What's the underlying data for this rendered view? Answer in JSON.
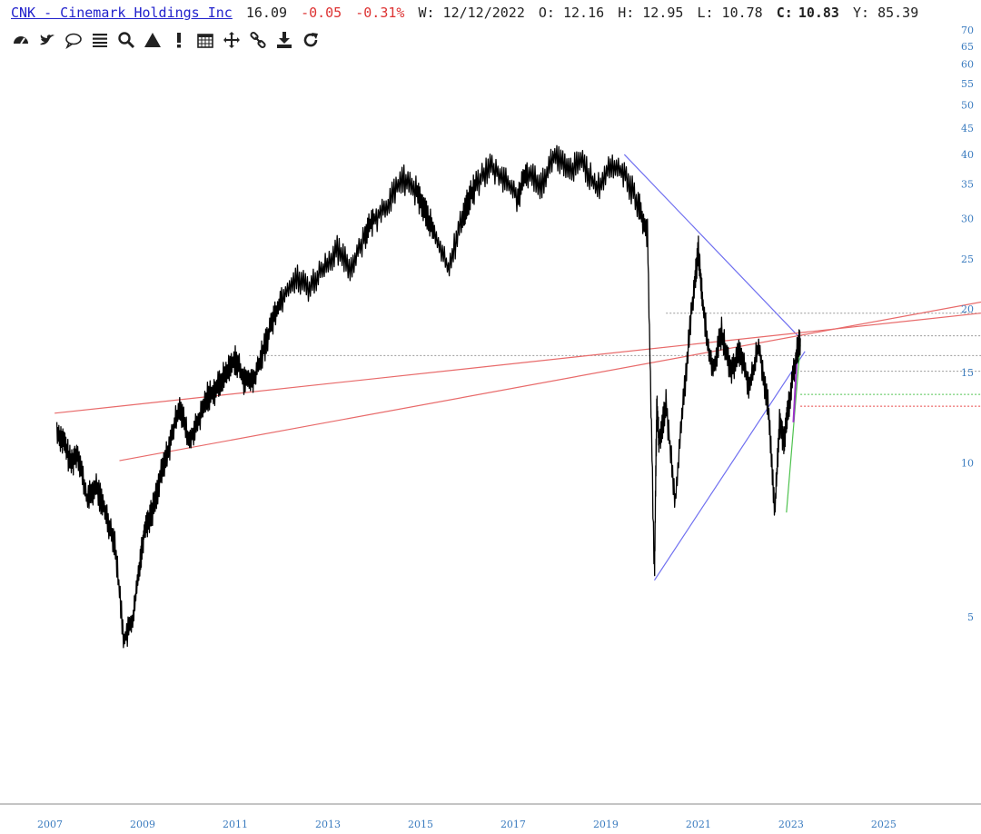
{
  "header": {
    "symbol_name": "CNK - Cinemark Holdings Inc",
    "last": "16.09",
    "change": "-0.05",
    "change_pct": "-0.31%",
    "week": "W: 12/12/2022",
    "open": "O: 12.16",
    "high": "H: 12.95",
    "low": "L: 10.78",
    "close_label": "C:",
    "close_value": "10.83",
    "y_value": "Y: 85.39"
  },
  "toolbar": [
    {
      "name": "dashboard-icon"
    },
    {
      "name": "twitter-icon"
    },
    {
      "name": "comment-icon"
    },
    {
      "name": "list-icon"
    },
    {
      "name": "search-icon"
    },
    {
      "name": "triangle-icon"
    },
    {
      "name": "alert-icon"
    },
    {
      "name": "calendar-icon"
    },
    {
      "name": "move-icon"
    },
    {
      "name": "link-icon"
    },
    {
      "name": "download-icon"
    },
    {
      "name": "refresh-icon"
    }
  ],
  "colors": {
    "price": "#000000",
    "trendline_blue": "#6f6ff0",
    "trendline_red": "#e86a6a",
    "axis_label": "#3a7bbf",
    "support_green": "#4ec24e",
    "support_red": "#e84545",
    "dotted_gray": "#999999"
  },
  "chart_data": {
    "type": "line",
    "title": "CNK - Cinemark Holdings Inc",
    "y_scale": "log",
    "ylim": [
      4.5,
      70
    ],
    "xlim": [
      2007.0,
      2027.1
    ],
    "y_ticks": [
      5,
      10,
      15,
      20,
      25,
      30,
      35,
      40,
      45,
      50,
      55,
      60,
      65,
      70
    ],
    "x_ticks": [
      "2007",
      "2009",
      "2011",
      "2013",
      "2015",
      "2017",
      "2019",
      "2021",
      "2023",
      "2025"
    ],
    "series": [
      {
        "x": [
          2007.15,
          2007.3,
          2007.45,
          2007.6,
          2007.8,
          2008.0,
          2008.2,
          2008.4,
          2008.6,
          2008.8,
          2008.95,
          2009.05,
          2009.2,
          2009.4,
          2009.6,
          2009.8,
          2010.0,
          2010.2,
          2010.4,
          2010.6,
          2010.8,
          2011.0,
          2011.2,
          2011.4,
          2011.6,
          2011.8,
          2012.0,
          2012.3,
          2012.6,
          2012.9,
          2013.2,
          2013.5,
          2013.8,
          2014.0,
          2014.3,
          2014.6,
          2014.9,
          2015.1,
          2015.3,
          2015.6,
          2015.9,
          2016.0,
          2016.2,
          2016.5,
          2016.8,
          2017.1,
          2017.3,
          2017.6,
          2017.9,
          2018.2,
          2018.5,
          2018.8,
          2019.1,
          2019.4,
          2019.7,
          2019.9,
          2020.05,
          2020.1,
          2020.15,
          2020.3,
          2020.5,
          2020.7,
          2020.9,
          2021.0,
          2021.1,
          2021.3,
          2021.5,
          2021.7,
          2021.9,
          2022.1,
          2022.3,
          2022.5,
          2022.65,
          2022.75,
          2022.85,
          2022.95,
          2023.1,
          2023.2
        ],
        "y": [
          11.5,
          11.0,
          10.0,
          10.5,
          8.5,
          9.0,
          8.0,
          7.0,
          4.5,
          5.0,
          6.5,
          7.5,
          8.0,
          9.5,
          11.0,
          13.0,
          11.0,
          12.0,
          13.5,
          14.0,
          15.0,
          16.0,
          14.5,
          14.5,
          16.5,
          19.0,
          21.0,
          23.0,
          22.0,
          24.0,
          26.0,
          24.0,
          28.0,
          30.0,
          32.0,
          36.0,
          34.0,
          31.0,
          28.0,
          24.0,
          30.0,
          32.0,
          35.0,
          38.0,
          36.0,
          33.0,
          37.0,
          35.0,
          40.0,
          37.0,
          39.0,
          34.0,
          38.0,
          37.0,
          32.0,
          28.0,
          6.0,
          13.0,
          11.0,
          13.0,
          8.5,
          14.0,
          22.0,
          26.0,
          20.0,
          15.0,
          18.0,
          15.0,
          16.5,
          14.0,
          17.0,
          13.0,
          8.0,
          12.0,
          11.0,
          13.0,
          16.0,
          17.5
        ]
      }
    ],
    "trendlines": [
      {
        "color": "blue",
        "x": [
          2019.4,
          2023.2
        ],
        "y": [
          40.0,
          17.5
        ]
      },
      {
        "color": "blue",
        "x": [
          2020.05,
          2023.3
        ],
        "y": [
          5.9,
          16.5
        ]
      },
      {
        "color": "red",
        "x": [
          2007.1,
          2027.1
        ],
        "y": [
          12.5,
          19.6
        ]
      },
      {
        "color": "red",
        "x": [
          2008.5,
          2027.1
        ],
        "y": [
          10.1,
          20.6
        ]
      },
      {
        "color": "green",
        "x": [
          2022.9,
          2023.2
        ],
        "y": [
          8.0,
          17.0
        ]
      },
      {
        "color": "purple",
        "x": [
          2023.05,
          2023.15
        ],
        "y": [
          12.0,
          17.5
        ]
      }
    ],
    "hlines": [
      {
        "style": "dotted",
        "color": "gray",
        "y": 19.6,
        "x_from": 2020.3
      },
      {
        "style": "dotted",
        "color": "gray",
        "y": 17.7,
        "x_from": 2023.2
      },
      {
        "style": "dotted",
        "color": "gray",
        "y": 16.2,
        "x_from": 2011.3
      },
      {
        "style": "dotted",
        "color": "gray",
        "y": 15.1,
        "x_from": 2023.2
      },
      {
        "style": "dotted",
        "color": "green",
        "y": 13.6,
        "x_from": 2023.2
      },
      {
        "style": "dotted",
        "color": "red",
        "y": 12.9,
        "x_from": 2023.2
      }
    ]
  }
}
